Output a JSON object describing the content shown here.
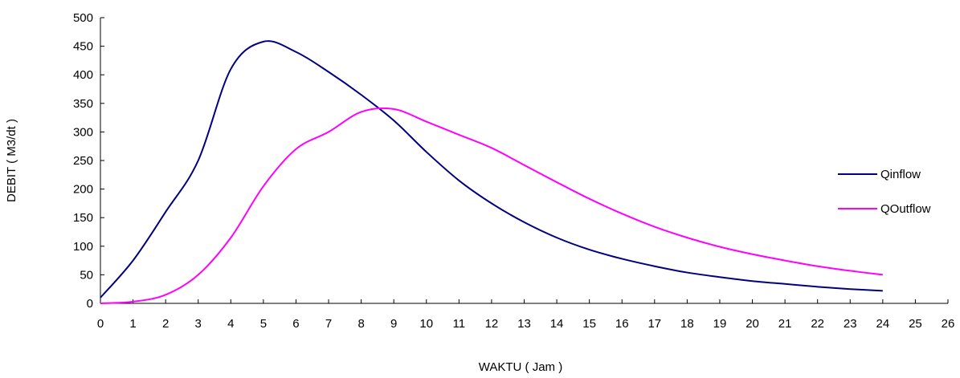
{
  "chart_data": {
    "type": "line",
    "title": "",
    "xlabel": "WAKTU ( Jam )",
    "ylabel": "DEBIT ( M3/dt )",
    "xlim": [
      0,
      26
    ],
    "ylim": [
      0,
      500
    ],
    "xticks": [
      0,
      1,
      2,
      3,
      4,
      5,
      6,
      7,
      8,
      9,
      10,
      11,
      12,
      13,
      14,
      15,
      16,
      17,
      18,
      19,
      20,
      21,
      22,
      23,
      24,
      25,
      26
    ],
    "yticks": [
      0,
      50,
      100,
      150,
      200,
      250,
      300,
      350,
      400,
      450,
      500
    ],
    "grid": false,
    "legend_position": "right",
    "series": [
      {
        "name": "Qinflow",
        "color": "#000080",
        "x": [
          0,
          1,
          2,
          3,
          4,
          5,
          6,
          7,
          8,
          9,
          10,
          11,
          12,
          13,
          14,
          15,
          16,
          17,
          18,
          19,
          20,
          21,
          22,
          23,
          24
        ],
        "y": [
          10,
          75,
          160,
          250,
          410,
          458,
          440,
          405,
          365,
          320,
          265,
          215,
          175,
          142,
          115,
          94,
          78,
          65,
          54,
          46,
          39,
          34,
          29,
          25,
          22
        ]
      },
      {
        "name": "QOutflow",
        "color": "#ff00ff",
        "x": [
          0,
          1,
          2,
          3,
          4,
          5,
          6,
          7,
          8,
          9,
          10,
          11,
          12,
          13,
          14,
          15,
          16,
          17,
          18,
          19,
          20,
          21,
          22,
          23,
          24
        ],
        "y": [
          0,
          3,
          15,
          50,
          115,
          205,
          270,
          300,
          335,
          340,
          318,
          295,
          272,
          242,
          212,
          183,
          157,
          134,
          115,
          99,
          86,
          75,
          65,
          57,
          50
        ]
      }
    ]
  }
}
